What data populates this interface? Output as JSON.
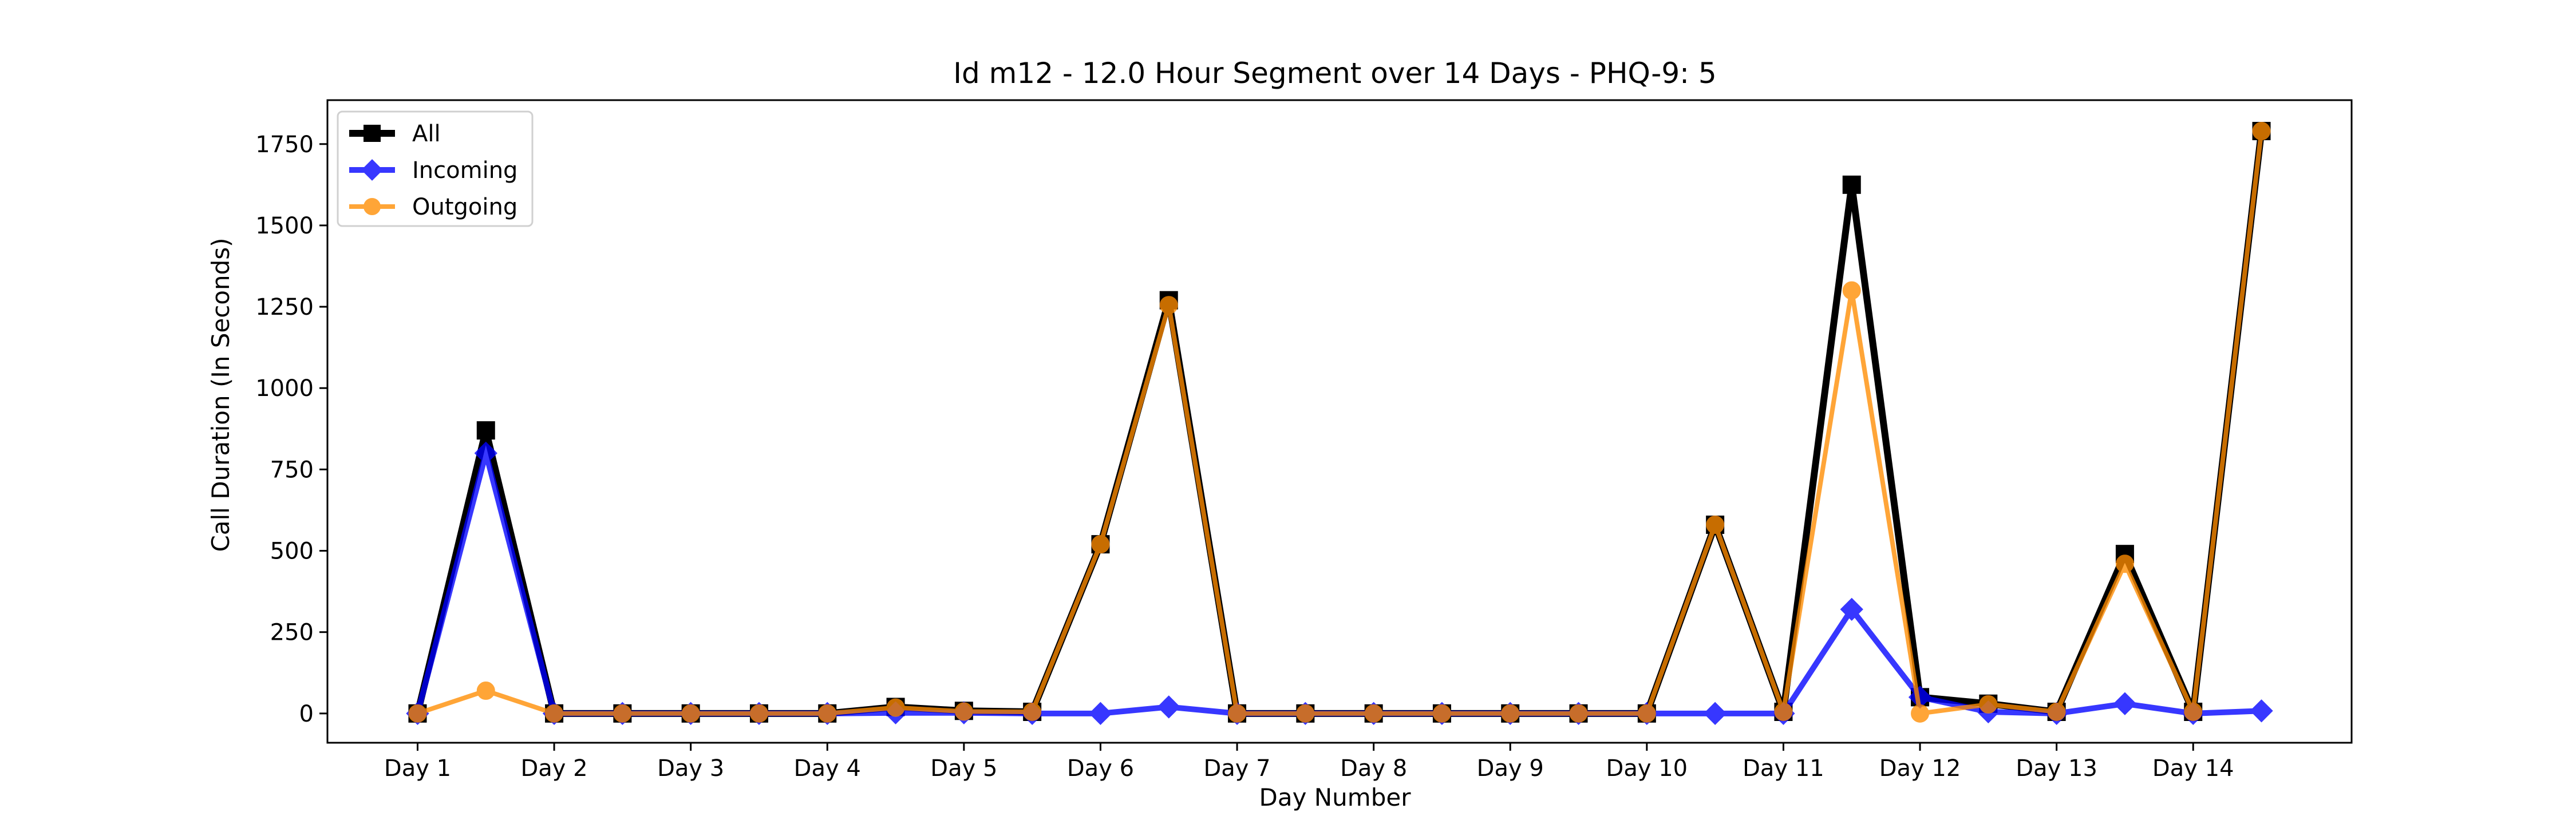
{
  "chart_data": {
    "type": "line",
    "title": "Id m12 - 12.0 Hour Segment over 14 Days - PHQ-9: 5",
    "xlabel": "Day Number",
    "ylabel": "Call Duration (In Seconds)",
    "categories": [
      "Day 1",
      "Day 2",
      "Day 3",
      "Day 4",
      "Day 5",
      "Day 6",
      "Day 7",
      "Day 8",
      "Day 9",
      "Day 10",
      "Day 11",
      "Day 12",
      "Day 13",
      "Day 14"
    ],
    "x": [
      1,
      1.5,
      2,
      2.5,
      3,
      3.5,
      4,
      4.5,
      5,
      5.5,
      6,
      6.5,
      7,
      7.5,
      8,
      8.5,
      9,
      9.5,
      10,
      10.5,
      11,
      11.5,
      12,
      12.5,
      13,
      13.5,
      14,
      14.5
    ],
    "xlim": [
      0.34,
      15.16
    ],
    "ylim": [
      -90,
      1885
    ],
    "yticks": [
      0,
      250,
      500,
      750,
      1000,
      1250,
      1500,
      1750
    ],
    "grid": false,
    "legend_position": "top-left",
    "series": [
      {
        "name": "All",
        "color": "#000000",
        "marker": "square",
        "values": [
          0,
          870,
          0,
          0,
          0,
          0,
          0,
          20,
          8,
          5,
          520,
          1270,
          0,
          0,
          0,
          0,
          0,
          0,
          0,
          580,
          5,
          1625,
          50,
          30,
          5,
          490,
          5,
          1790
        ]
      },
      {
        "name": "Incoming",
        "color": "#0000ff",
        "marker": "diamond",
        "values": [
          0,
          800,
          0,
          0,
          0,
          0,
          0,
          2,
          2,
          0,
          0,
          20,
          0,
          0,
          0,
          0,
          0,
          0,
          0,
          0,
          0,
          320,
          50,
          5,
          0,
          30,
          0,
          8
        ]
      },
      {
        "name": "Outgoing",
        "color": "#ff8c00",
        "marker": "circle",
        "values": [
          0,
          70,
          0,
          0,
          0,
          0,
          0,
          18,
          6,
          5,
          520,
          1255,
          0,
          0,
          0,
          0,
          0,
          0,
          0,
          580,
          5,
          1300,
          0,
          28,
          5,
          460,
          5,
          1790
        ]
      }
    ]
  }
}
